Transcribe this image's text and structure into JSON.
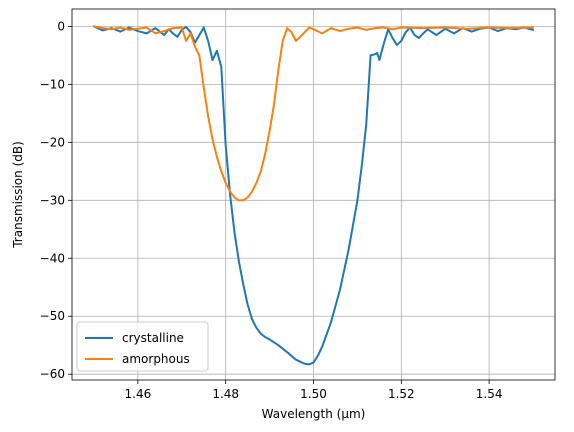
{
  "chart_data": {
    "type": "line",
    "xlabel": "Wavelength (µm)",
    "ylabel": "Transmission (dB)",
    "xlim": [
      1.445,
      1.555
    ],
    "ylim": [
      -61,
      3
    ],
    "grid": true,
    "legend_position": "lower-left",
    "xticks": [
      1.46,
      1.48,
      1.5,
      1.52,
      1.54
    ],
    "xtick_labels": [
      "1.46",
      "1.48",
      "1.50",
      "1.52",
      "1.54"
    ],
    "yticks": [
      0,
      -10,
      -20,
      -30,
      -40,
      -50,
      -60
    ],
    "ytick_labels": [
      "0",
      "−10",
      "−20",
      "−30",
      "−40",
      "−50",
      "−60"
    ],
    "series": [
      {
        "name": "crystalline",
        "color": "#1f77b4",
        "x": [
          1.45,
          1.452,
          1.454,
          1.456,
          1.458,
          1.46,
          1.462,
          1.464,
          1.466,
          1.467,
          1.468,
          1.469,
          1.47,
          1.471,
          1.472,
          1.473,
          1.474,
          1.475,
          1.476,
          1.477,
          1.478,
          1.479,
          1.48,
          1.481,
          1.482,
          1.483,
          1.484,
          1.485,
          1.486,
          1.487,
          1.488,
          1.489,
          1.49,
          1.492,
          1.494,
          1.496,
          1.498,
          1.499,
          1.5,
          1.501,
          1.502,
          1.504,
          1.506,
          1.508,
          1.51,
          1.511,
          1.512,
          1.513,
          1.514,
          1.5145,
          1.515,
          1.516,
          1.517,
          1.518,
          1.519,
          1.52,
          1.521,
          1.522,
          1.523,
          1.524,
          1.525,
          1.526,
          1.528,
          1.53,
          1.532,
          1.534,
          1.536,
          1.538,
          1.54,
          1.542,
          1.544,
          1.546,
          1.548,
          1.55
        ],
        "y": [
          0,
          -0.7,
          -0.3,
          -0.9,
          -0.2,
          -0.8,
          -1.2,
          -0.3,
          -1.5,
          -0.5,
          -1.2,
          -1.8,
          -0.6,
          -0.1,
          -1.0,
          -2.8,
          -1.5,
          -0.2,
          -2.5,
          -5.8,
          -4.2,
          -7.0,
          -20.5,
          -29.0,
          -35.5,
          -40.5,
          -44.5,
          -48.0,
          -50.5,
          -52.0,
          -53.0,
          -53.6,
          -54.0,
          -55.0,
          -56.2,
          -57.5,
          -58.2,
          -58.3,
          -58.0,
          -56.8,
          -55.2,
          -51.0,
          -45.5,
          -38.5,
          -30.0,
          -24.0,
          -17.0,
          -5.0,
          -4.8,
          -4.6,
          -5.8,
          -3.0,
          -0.5,
          -2.0,
          -3.2,
          -2.5,
          -1.0,
          -0.2,
          -1.5,
          -2.0,
          -1.2,
          -0.5,
          -1.5,
          -0.4,
          -1.2,
          -0.3,
          -0.9,
          -0.4,
          -0.2,
          -0.8,
          -0.3,
          -0.5,
          -0.2,
          -0.6
        ]
      },
      {
        "name": "amorphous",
        "color": "#ff7f0e",
        "x": [
          1.45,
          1.452,
          1.454,
          1.456,
          1.458,
          1.46,
          1.462,
          1.464,
          1.466,
          1.468,
          1.47,
          1.471,
          1.472,
          1.473,
          1.474,
          1.475,
          1.476,
          1.477,
          1.478,
          1.479,
          1.48,
          1.481,
          1.482,
          1.483,
          1.484,
          1.485,
          1.486,
          1.487,
          1.488,
          1.489,
          1.49,
          1.491,
          1.492,
          1.493,
          1.494,
          1.495,
          1.496,
          1.497,
          1.498,
          1.499,
          1.5,
          1.502,
          1.504,
          1.506,
          1.508,
          1.51,
          1.512,
          1.514,
          1.516,
          1.518,
          1.52,
          1.525,
          1.53,
          1.535,
          1.54,
          1.545,
          1.55
        ],
        "y": [
          0,
          -0.3,
          -0.5,
          -0.2,
          -0.6,
          -0.4,
          -0.2,
          -1.2,
          -0.8,
          -0.3,
          -0.2,
          -2.5,
          -1.2,
          -3.5,
          -5.0,
          -10.5,
          -15.5,
          -19.5,
          -22.5,
          -25.0,
          -27.0,
          -28.5,
          -29.5,
          -30.0,
          -30.0,
          -29.5,
          -28.5,
          -27.0,
          -25.0,
          -22.0,
          -18.0,
          -13.5,
          -7.5,
          -2.5,
          -0.3,
          -1.0,
          -2.5,
          -1.8,
          -1.0,
          -0.2,
          -0.5,
          -1.2,
          -0.3,
          -0.8,
          -0.4,
          -0.2,
          -0.6,
          -0.3,
          -0.2,
          -0.5,
          -0.2,
          -0.3,
          -0.2,
          -0.4,
          -0.2,
          -0.3,
          -0.2
        ]
      }
    ]
  }
}
